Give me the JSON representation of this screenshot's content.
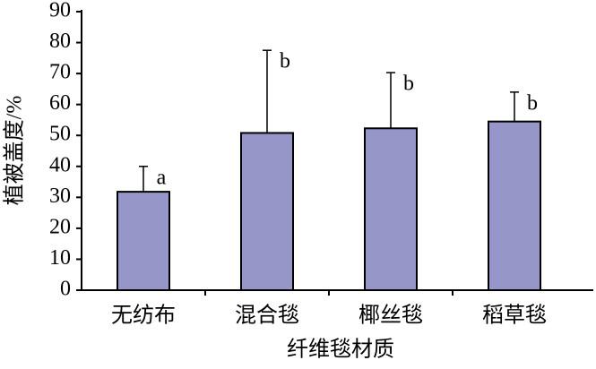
{
  "chart_data": {
    "type": "bar",
    "x_label": "纤维毯材质",
    "y_label": "植被盖度/%",
    "categories": [
      "无纺布",
      "混合毯",
      "椰丝毯",
      "稻草毯"
    ],
    "values": [
      31.8,
      50.8,
      52.3,
      54.5
    ],
    "errors": [
      8.2,
      26.7,
      18,
      9.5
    ],
    "labels": [
      "a",
      "b",
      "b",
      "b"
    ],
    "color": "#9696c8",
    "ylim": [
      0,
      90
    ],
    "yticks": [
      0,
      10,
      20,
      30,
      40,
      50,
      60,
      70,
      80,
      90
    ],
    "grid": false
  }
}
